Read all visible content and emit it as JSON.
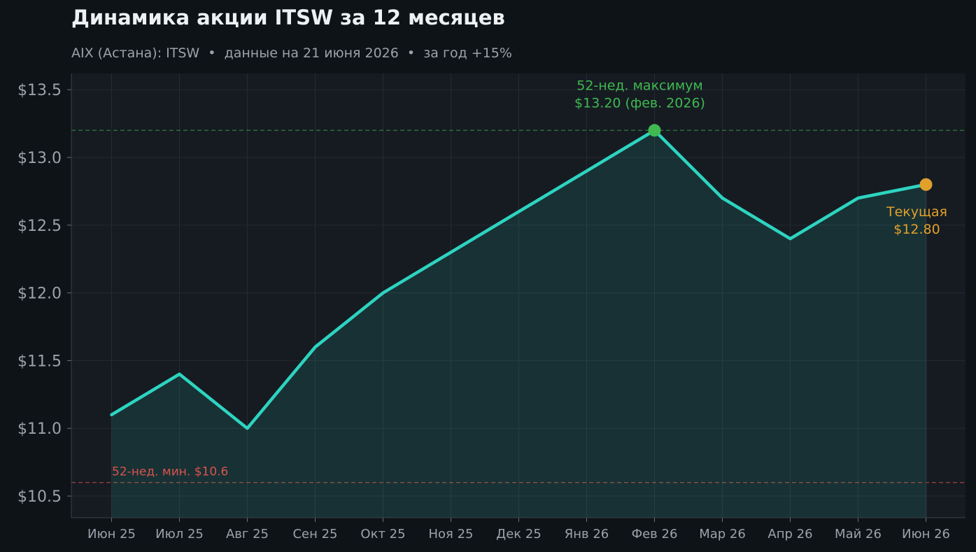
{
  "header": {
    "title": "Динамика акции ITSW за 12 месяцев",
    "subtitle": "AIX (Астана): ITSW  •  данные на 21 июня 2026  •  за год +15%"
  },
  "colors": {
    "line": "#2dd4c0",
    "high": "#3fb950",
    "low": "#d9534f",
    "current": "#e0a02a",
    "axis_text": "#9aa3ab"
  },
  "chart_data": {
    "type": "area",
    "categories": [
      "Июн 25",
      "Июл 25",
      "Авг 25",
      "Сен 25",
      "Окт 25",
      "Ноя 25",
      "Дек 25",
      "Янв 26",
      "Фев 26",
      "Мар 26",
      "Апр 26",
      "Май 26",
      "Июн 26"
    ],
    "values": [
      11.1,
      11.4,
      11.0,
      11.6,
      12.0,
      12.3,
      12.6,
      12.9,
      13.2,
      12.7,
      12.4,
      12.7,
      12.8
    ],
    "ylim": [
      10.34,
      13.62
    ],
    "yticks": [
      10.5,
      11.0,
      11.5,
      12.0,
      12.5,
      13.0,
      13.5
    ],
    "ytick_labels": [
      "$10.5",
      "$11.0",
      "$11.5",
      "$12.0",
      "$12.5",
      "$13.0",
      "$13.5"
    ],
    "grid": true,
    "annotations": {
      "high": {
        "value": 13.2,
        "index": 8,
        "line1": "52-нед. максимум",
        "line2": "$13.20 (фев. 2026)"
      },
      "low": {
        "value": 10.6,
        "label": "52-нед. мин. $10.6"
      },
      "current": {
        "value": 12.8,
        "index": 12,
        "line1": "Текущая",
        "line2": "$12.80"
      }
    }
  }
}
